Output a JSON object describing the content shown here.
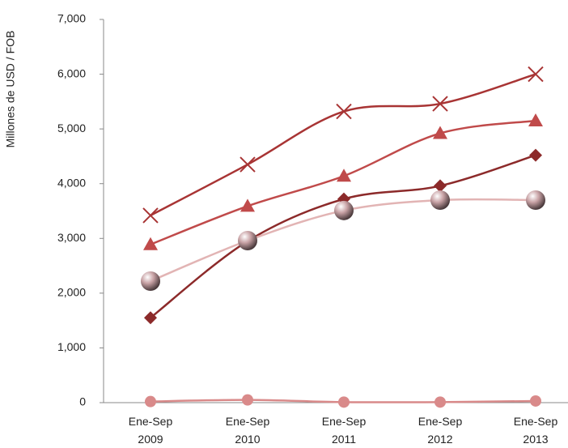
{
  "chart_data": {
    "type": "line",
    "y_label": "Millones de USD / FOB",
    "categories": [
      "Ene-Sep 2009",
      "Ene-Sep 2010",
      "Ene-Sep 2011",
      "Ene-Sep 2012",
      "Ene-Sep 2013"
    ],
    "series": [
      {
        "color": "#a83434",
        "marker": "x",
        "values": [
          3420,
          4350,
          5320,
          5460,
          6000
        ]
      },
      {
        "color": "#c04a4a",
        "marker": "triangle",
        "values": [
          2890,
          3590,
          4140,
          4920,
          5150
        ]
      },
      {
        "color": "#8c2a2a",
        "marker": "diamond",
        "values": [
          1550,
          2950,
          3720,
          3960,
          4520
        ]
      },
      {
        "color": "#e2b4b4",
        "marker": "sphere",
        "values": [
          2220,
          2960,
          3510,
          3700,
          3700
        ]
      },
      {
        "color": "#d98a8a",
        "marker": "circle",
        "values": [
          20,
          50,
          10,
          10,
          30
        ]
      }
    ],
    "ylim": [
      0,
      7000
    ],
    "yticks": [
      0,
      {
        "value": 1000,
        "label": "1,000"
      },
      {
        "value": 2000,
        "label": "2,000"
      },
      {
        "value": 3000,
        "label": "3,000"
      },
      {
        "value": 4000,
        "label": "4,000"
      },
      {
        "value": 5000,
        "label": "5,000"
      },
      {
        "value": 6000,
        "label": "6,000"
      },
      {
        "value": 7000,
        "label": "7,000"
      }
    ],
    "smooth": true,
    "grid": false
  }
}
